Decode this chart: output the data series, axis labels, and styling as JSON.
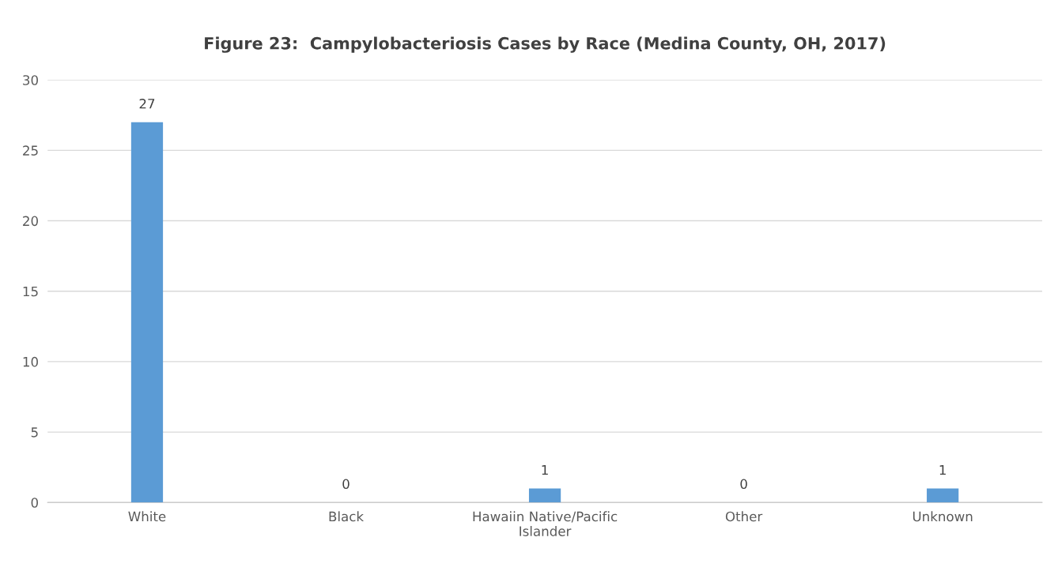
{
  "chart_data": {
    "type": "bar",
    "title": "Figure 23:  Campylobacteriosis Cases by Race (Medina County, OH, 2017)",
    "categories": [
      "White",
      "Black",
      "Hawaiin Native/Pacific\nIslander",
      "Other",
      "Unknown"
    ],
    "values": [
      27,
      0,
      1,
      0,
      1
    ],
    "color": "#5b9bd5",
    "ylim": [
      0,
      30
    ],
    "yticks": [
      0,
      5,
      10,
      15,
      20,
      25,
      30
    ],
    "grid": "y",
    "data_labels": true
  }
}
